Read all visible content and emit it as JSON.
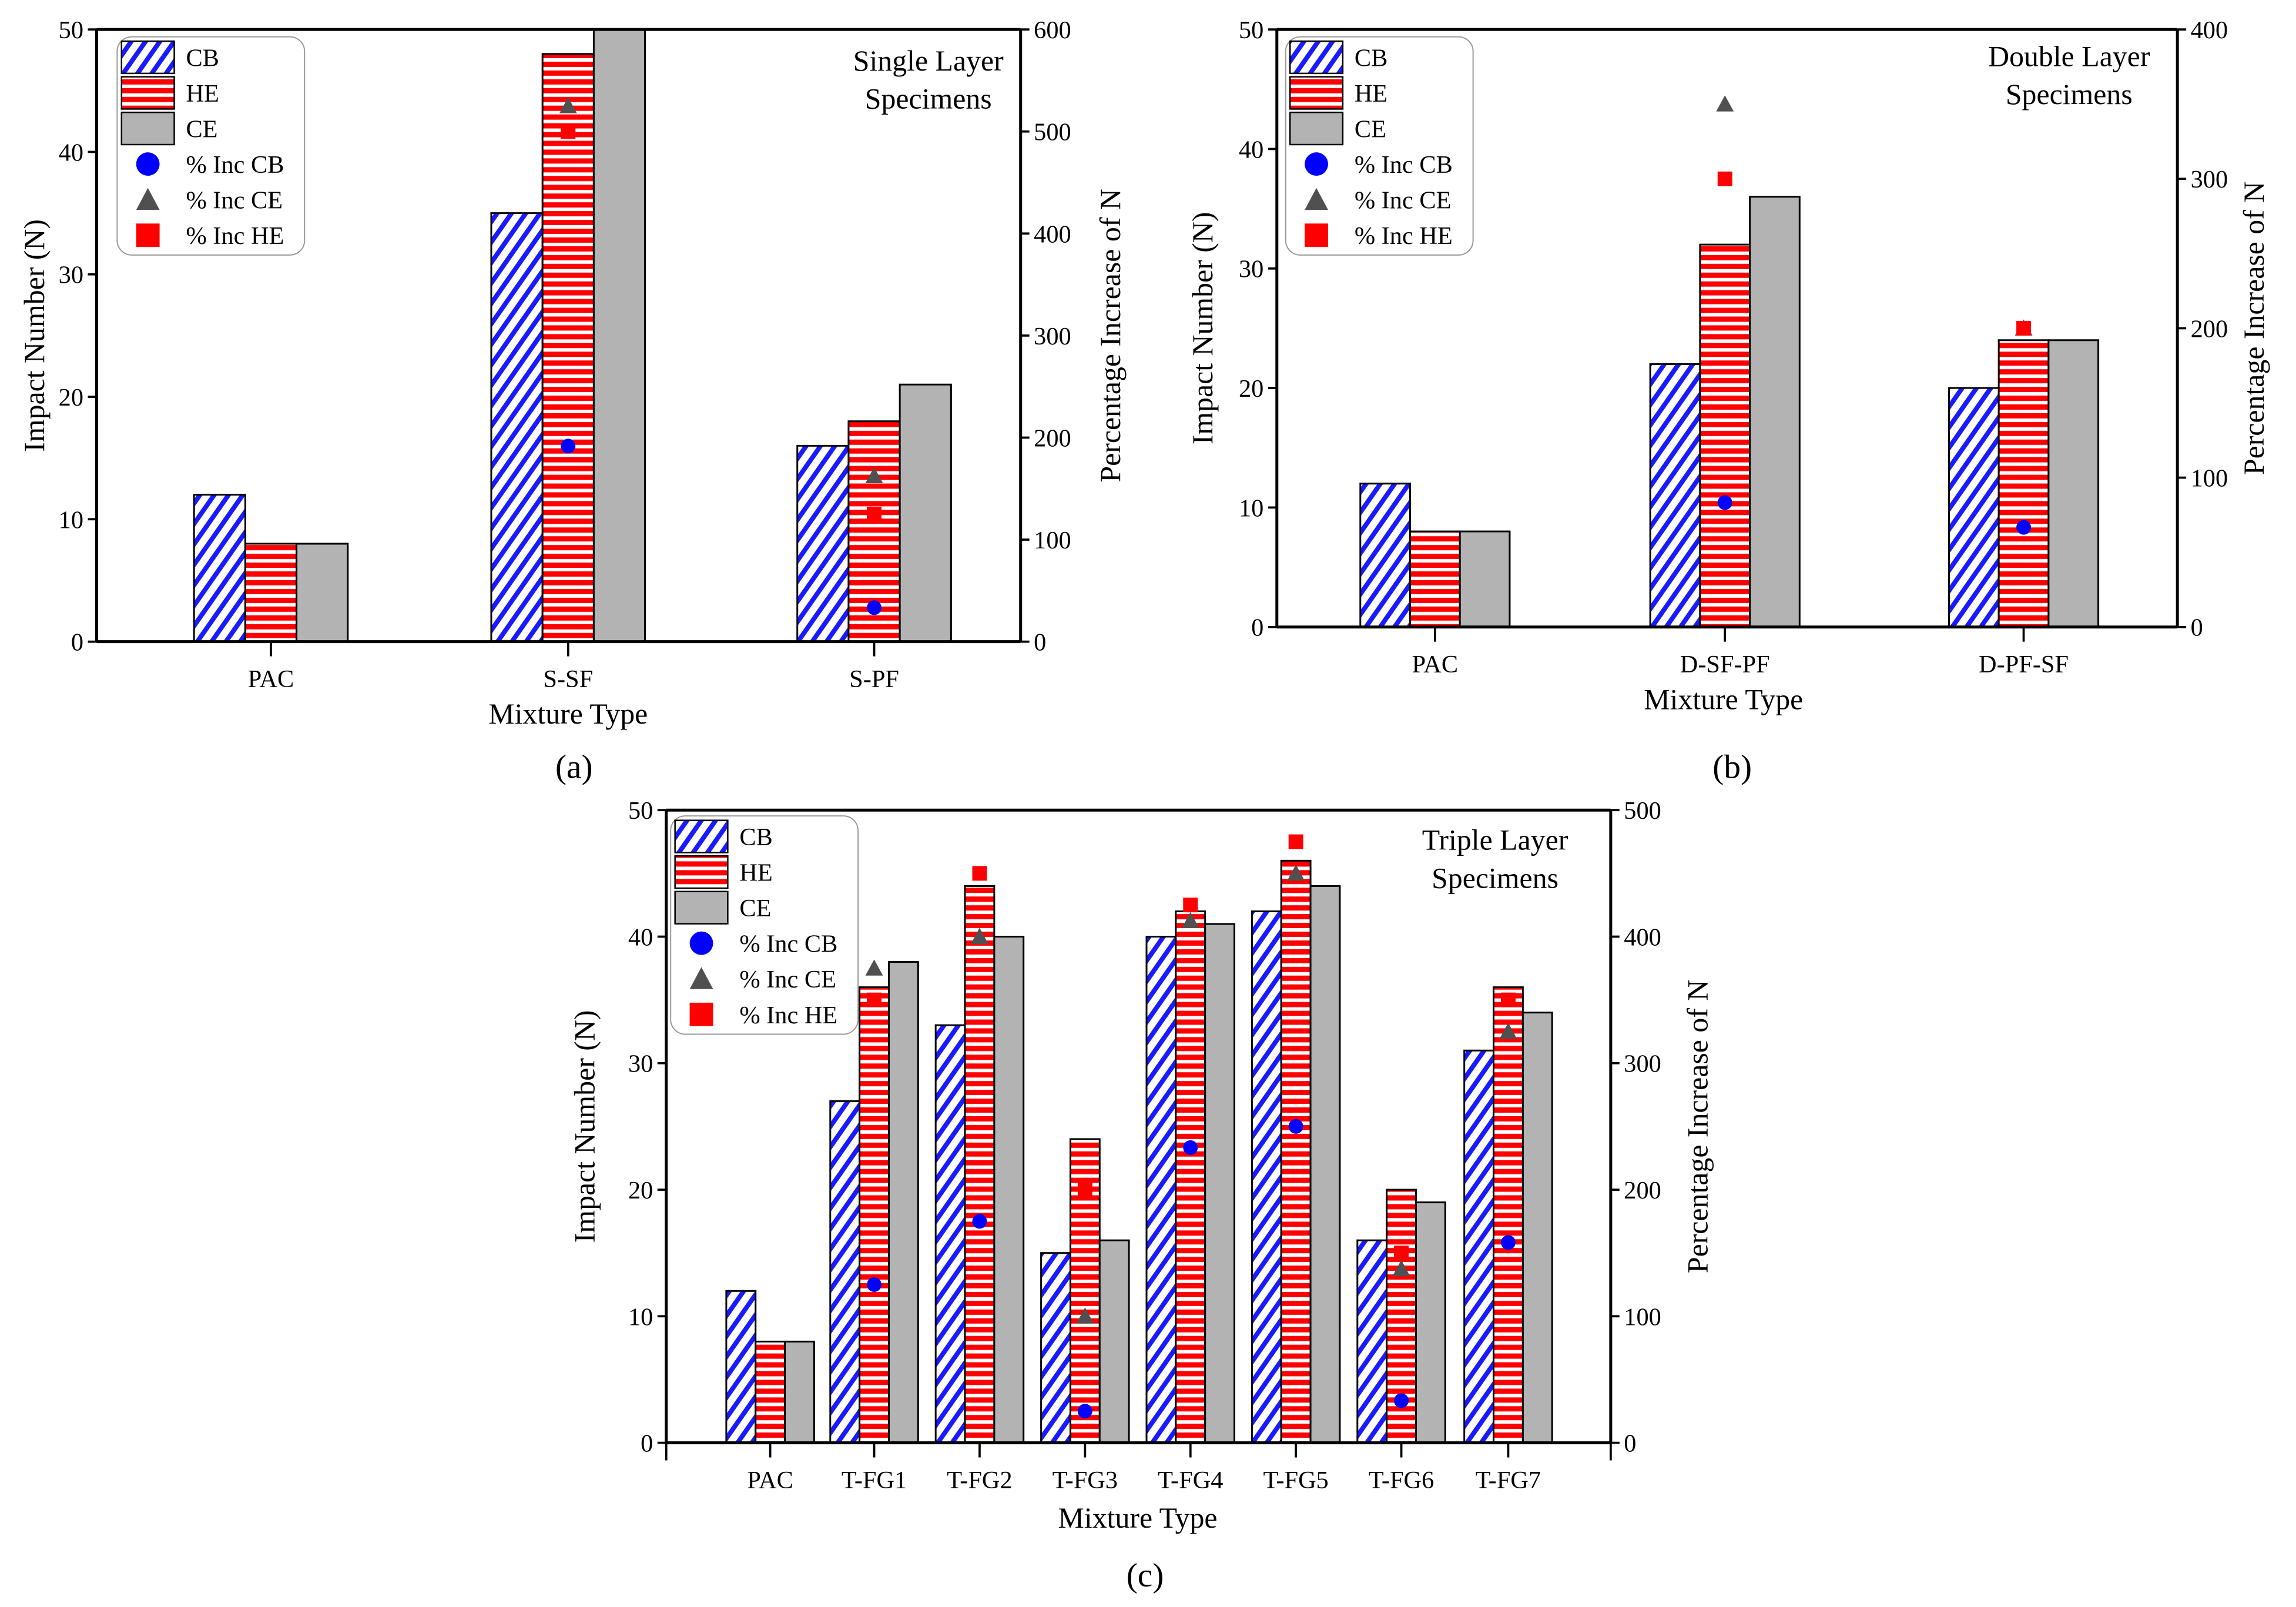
{
  "chart_data": [
    {
      "type": "bar",
      "panel_label": "(a)",
      "title": "Single Layer\nSpecimens",
      "title_lines": [
        "Single Layer",
        "Specimens"
      ],
      "xlabel": "Mixture Type",
      "ylabel": "Impact Number (N)",
      "y2label": "Percentage Increase of N",
      "ylim": [
        0,
        50
      ],
      "y2lim": [
        0,
        600
      ],
      "yticks": [
        "0",
        "10",
        "20",
        "30",
        "40",
        "50"
      ],
      "y2ticks": [
        "0",
        "100",
        "200",
        "300",
        "400",
        "500",
        "600"
      ],
      "categories": [
        "PAC",
        "S-SF",
        "S-PF"
      ],
      "series": [
        {
          "name": "CB",
          "values": [
            12,
            35,
            16
          ]
        },
        {
          "name": "HE",
          "values": [
            8,
            48,
            18
          ]
        },
        {
          "name": "CE",
          "values": [
            8,
            50,
            21
          ]
        }
      ],
      "scatter_series": [
        {
          "name": "% Inc CB",
          "values": [
            null,
            191.7,
            33.3
          ]
        },
        {
          "name": "% Inc CE",
          "values": [
            null,
            525,
            162.5
          ]
        },
        {
          "name": "% Inc HE",
          "values": [
            null,
            500,
            125
          ]
        }
      ],
      "legend": [
        "CB",
        "HE",
        "CE",
        "% Inc CB",
        "% Inc CE",
        "% Inc HE"
      ],
      "legend_position": "top-left"
    },
    {
      "type": "bar",
      "panel_label": "(b)",
      "title_lines": [
        "Double Layer",
        "Specimens"
      ],
      "xlabel": "Mixture Type",
      "ylabel": "Impact Number (N)",
      "y2label": "Percentage Increase of N",
      "ylim": [
        0,
        50
      ],
      "y2lim": [
        0,
        400
      ],
      "yticks": [
        "0",
        "10",
        "20",
        "30",
        "40",
        "50"
      ],
      "y2ticks": [
        "0",
        "100",
        "200",
        "300",
        "400"
      ],
      "categories": [
        "PAC",
        "D-SF-PF",
        "D-PF-SF"
      ],
      "series": [
        {
          "name": "CB",
          "values": [
            12,
            22,
            20
          ]
        },
        {
          "name": "HE",
          "values": [
            8,
            32,
            24
          ]
        },
        {
          "name": "CE",
          "values": [
            8,
            36,
            24
          ]
        }
      ],
      "scatter_series": [
        {
          "name": "% Inc CB",
          "values": [
            null,
            83.3,
            66.7
          ]
        },
        {
          "name": "% Inc CE",
          "values": [
            null,
            350,
            200
          ]
        },
        {
          "name": "% Inc HE",
          "values": [
            null,
            300,
            200
          ]
        }
      ],
      "legend": [
        "CB",
        "HE",
        "CE",
        "% Inc CB",
        "% Inc CE",
        "% Inc HE"
      ],
      "legend_position": "top-left"
    },
    {
      "type": "bar",
      "panel_label": "(c)",
      "title_lines": [
        "Triple Layer",
        "Specimens"
      ],
      "xlabel": "Mixture Type",
      "ylabel": "Impact Number (N)",
      "y2label": "Percentage Increase of N",
      "ylim": [
        0,
        50
      ],
      "y2lim": [
        0,
        500
      ],
      "yticks": [
        "0",
        "10",
        "20",
        "30",
        "40",
        "50"
      ],
      "y2ticks": [
        "0",
        "100",
        "200",
        "300",
        "400",
        "500"
      ],
      "categories": [
        "PAC",
        "T-FG1",
        "T-FG2",
        "T-FG3",
        "T-FG4",
        "T-FG5",
        "T-FG6",
        "T-FG7"
      ],
      "series": [
        {
          "name": "CB",
          "values": [
            12,
            27,
            33,
            15,
            40,
            42,
            16,
            31
          ]
        },
        {
          "name": "HE",
          "values": [
            8,
            36,
            44,
            24,
            42,
            46,
            20,
            36
          ]
        },
        {
          "name": "CE",
          "values": [
            8,
            38,
            40,
            16,
            41,
            44,
            19,
            34
          ]
        }
      ],
      "scatter_series": [
        {
          "name": "% Inc CB",
          "values": [
            null,
            125,
            175,
            25,
            233.3,
            250,
            33.3,
            158.3
          ]
        },
        {
          "name": "% Inc CE",
          "values": [
            null,
            375,
            400,
            100,
            412.5,
            450,
            137.5,
            325
          ]
        },
        {
          "name": "% Inc HE",
          "values": [
            null,
            350,
            450,
            200,
            425,
            475,
            150,
            350
          ]
        }
      ],
      "legend": [
        "CB",
        "HE",
        "CE",
        "% Inc CB",
        "% Inc CE",
        "% Inc HE"
      ],
      "legend_position": "top-left"
    }
  ],
  "colors": {
    "cb": "#1a1aff",
    "he": "#ff0000",
    "ce": "#b3b3b3",
    "inc_cb": "#0000ff",
    "inc_ce": "#505050",
    "inc_he": "#ff0000"
  }
}
